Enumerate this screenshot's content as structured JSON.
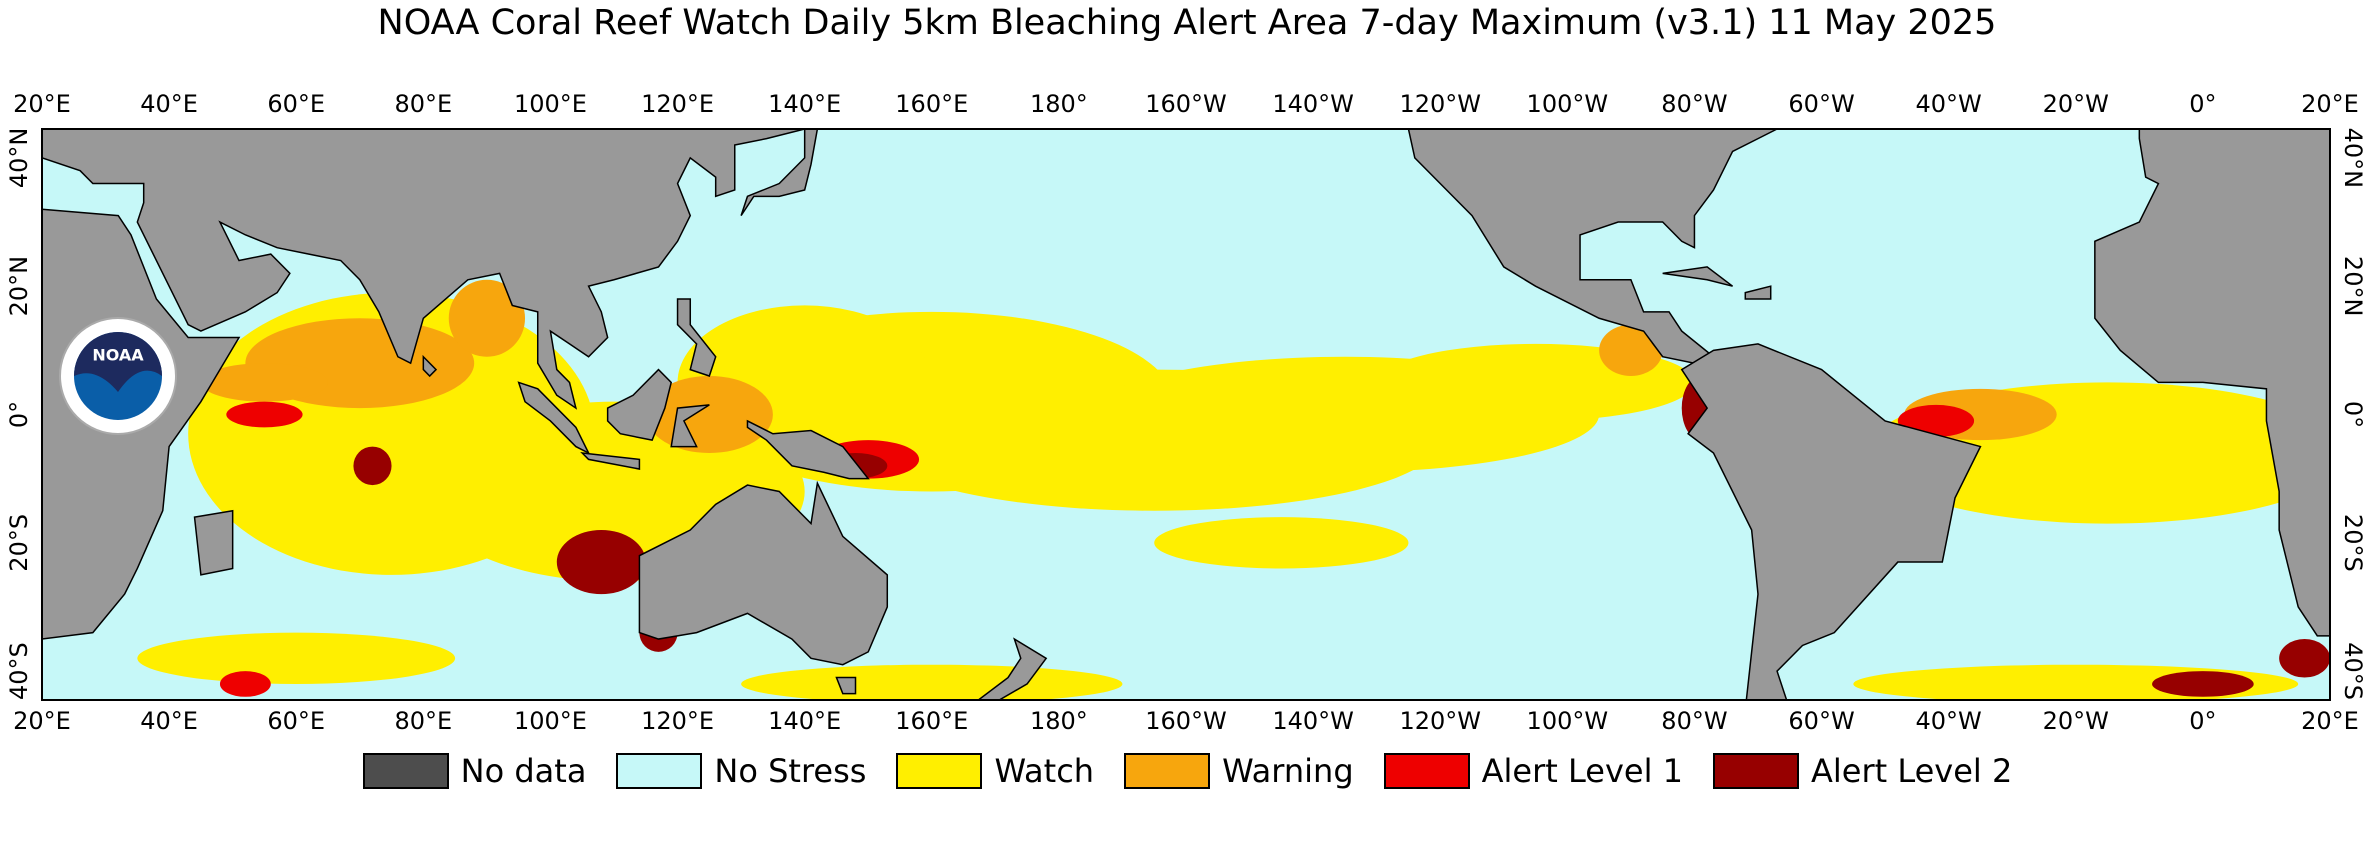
{
  "title": "NOAA Coral Reef Watch Daily 5km Bleaching Alert Area 7-day Maximum  (v3.1)   11 May 2025",
  "logo_text": "NOAA",
  "lon_labels": [
    "20°E",
    "40°E",
    "60°E",
    "80°E",
    "100°E",
    "120°E",
    "140°E",
    "160°E",
    "180°",
    "160°W",
    "140°W",
    "120°W",
    "100°W",
    "80°W",
    "60°W",
    "40°W",
    "20°W",
    "0°",
    "20°E"
  ],
  "lat_labels": [
    "40°N",
    "20°N",
    "0°",
    "20°S",
    "40°S"
  ],
  "legend": [
    {
      "label": "No data",
      "color": "#4d4d4d"
    },
    {
      "label": "No Stress",
      "color": "#c6f8f8"
    },
    {
      "label": "Watch",
      "color": "#ffef00"
    },
    {
      "label": "Warning",
      "color": "#f7a60d"
    },
    {
      "label": "Alert Level 1",
      "color": "#ee0000"
    },
    {
      "label": "Alert Level 2",
      "color": "#970000"
    }
  ]
}
